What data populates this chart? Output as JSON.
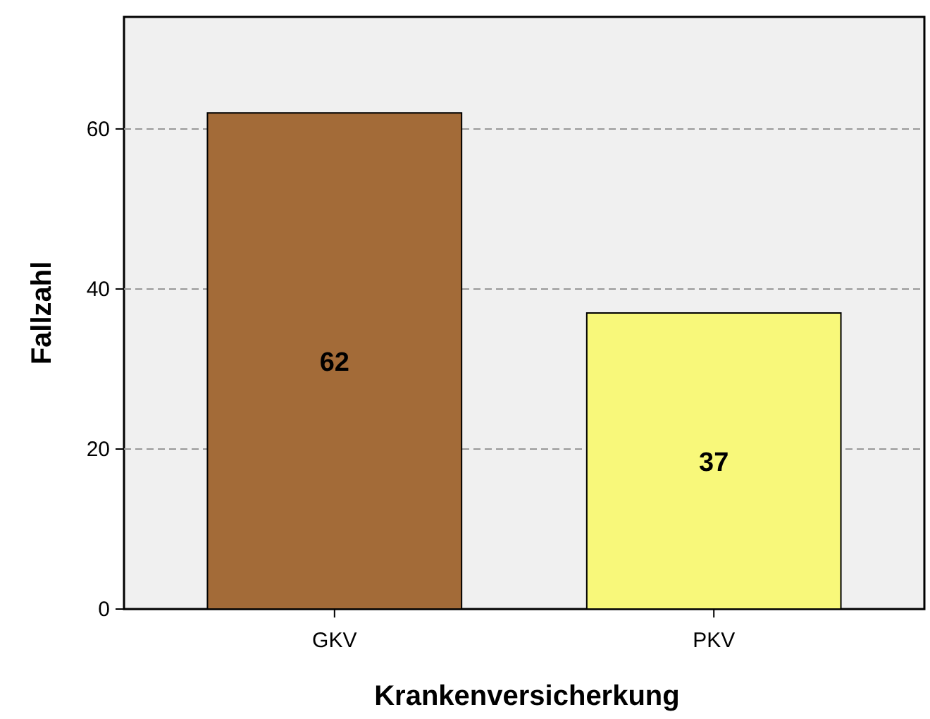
{
  "chart_data": {
    "type": "bar",
    "xlabel": "Krankenversicherkung",
    "ylabel": "Fallzahl",
    "categories": [
      "GKV",
      "PKV"
    ],
    "values": [
      62,
      37
    ],
    "colors": [
      "#a36b38",
      "#f8f87a"
    ],
    "ylim": [
      0,
      74
    ],
    "yticks": [
      0,
      20,
      40,
      60
    ],
    "grid": "y",
    "data_labels": true
  }
}
